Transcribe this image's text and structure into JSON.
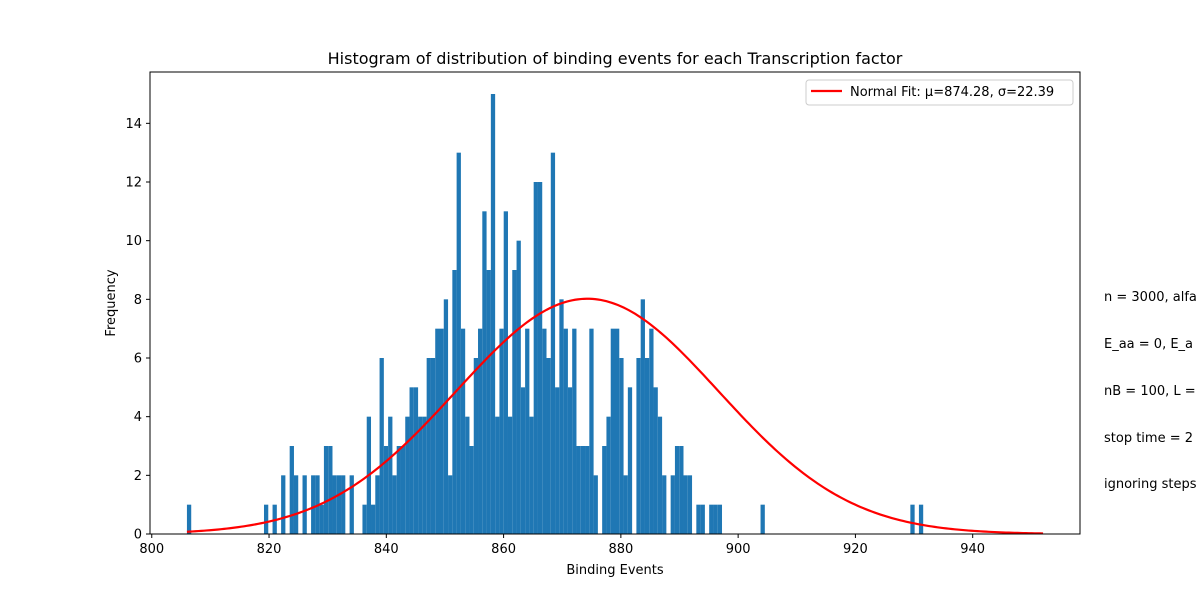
{
  "chart_data": {
    "type": "bar",
    "title": "Histogram of distribution of binding events for each Transcription factor",
    "xlabel": "Binding Events",
    "ylabel": "Frequency",
    "xlim": [
      799.7,
      958.3
    ],
    "ylim": [
      0,
      15.75
    ],
    "xticks": [
      800,
      820,
      840,
      860,
      880,
      900,
      920,
      940
    ],
    "yticks": [
      0,
      2,
      4,
      6,
      8,
      10,
      12,
      14
    ],
    "bin_start": 806,
    "bin_width": 0.73,
    "bin_counts": [
      1,
      0,
      0,
      0,
      0,
      0,
      0,
      0,
      0,
      0,
      0,
      0,
      0,
      0,
      0,
      0,
      0,
      0,
      1,
      0,
      1,
      0,
      2,
      0,
      3,
      2,
      0,
      2,
      0,
      2,
      2,
      1,
      3,
      3,
      2,
      2,
      2,
      0,
      2,
      0,
      0,
      1,
      4,
      1,
      2,
      6,
      3,
      4,
      2,
      3,
      3,
      4,
      5,
      5,
      4,
      4,
      6,
      6,
      7,
      7,
      8,
      2,
      9,
      13,
      7,
      4,
      3,
      6,
      7,
      11,
      9,
      15,
      4,
      7,
      11,
      4,
      9,
      10,
      5,
      7,
      4,
      12,
      12,
      7,
      6,
      13,
      5,
      8,
      7,
      5,
      7,
      3,
      3,
      3,
      7,
      2,
      0,
      3,
      4,
      7,
      7,
      6,
      2,
      5,
      0,
      6,
      8,
      6,
      7,
      5,
      4,
      2,
      0,
      2,
      3,
      3,
      2,
      2,
      0,
      1,
      1,
      0,
      1,
      1,
      1,
      0,
      0,
      0,
      0,
      0,
      0,
      0,
      0,
      0,
      1,
      0,
      0,
      0,
      0,
      0,
      0,
      0,
      0,
      0,
      0,
      0,
      0,
      0,
      0,
      0,
      0,
      0,
      0,
      0,
      0,
      0,
      0,
      0,
      0,
      0,
      0,
      0,
      0,
      0,
      0,
      0,
      0,
      0,
      0,
      1,
      0,
      1
    ],
    "fit": {
      "label": "Normal Fit: μ=874.28, σ=22.39",
      "mu": 874.28,
      "sigma": 22.39,
      "peak": 8.02,
      "x_range": [
        806,
        952
      ]
    },
    "legend_position": "top-right",
    "bar_color": "#1f77b4",
    "fit_color": "#ff0000",
    "grid": false
  },
  "side_note": {
    "lines": [
      "n = 3000, alfa",
      "E_aa = 0, E_a",
      "nB = 100, L =",
      "stop time = 2",
      "ignoring steps"
    ]
  }
}
